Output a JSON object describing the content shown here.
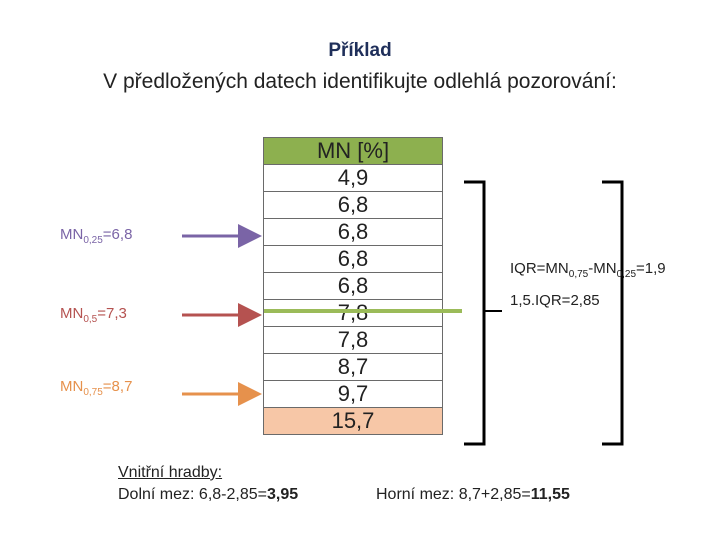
{
  "title": "Příklad",
  "subtitle": "V předložených datech identifikujte odlehlá pozorování:",
  "table": {
    "header": "MN [%]",
    "values": [
      "4,9",
      "6,8",
      "6,8",
      "6,8",
      "6,8",
      "7,8",
      "7,8",
      "8,7",
      "9,7",
      "15,7"
    ]
  },
  "quantiles": [
    {
      "base": "MN",
      "sub": "0,25",
      "rest": "=6,8",
      "color": "#7a64a6"
    },
    {
      "base": "MN",
      "sub": "0,5",
      "rest": "=7,3",
      "color": "#b55250"
    },
    {
      "base": "MN",
      "sub": "0,75",
      "rest": "=8,7",
      "color": "#e6914c"
    }
  ],
  "median_line_color": "#9bbb59",
  "iqr": {
    "line1_a": "IQR=MN",
    "line1_sub1": "0,75",
    "line1_b": "-MN",
    "line1_sub2": "0,25",
    "line1_c": "=1,9",
    "line2": "1,5.IQR=2,85"
  },
  "fences": {
    "heading": "Vnitřní hradby:",
    "lower_text": "Dolní mez: 6,8-2,85=",
    "lower_value": "3,95",
    "upper_text": "Horní mez: 8,7+2,85=",
    "upper_value": "11,55"
  }
}
